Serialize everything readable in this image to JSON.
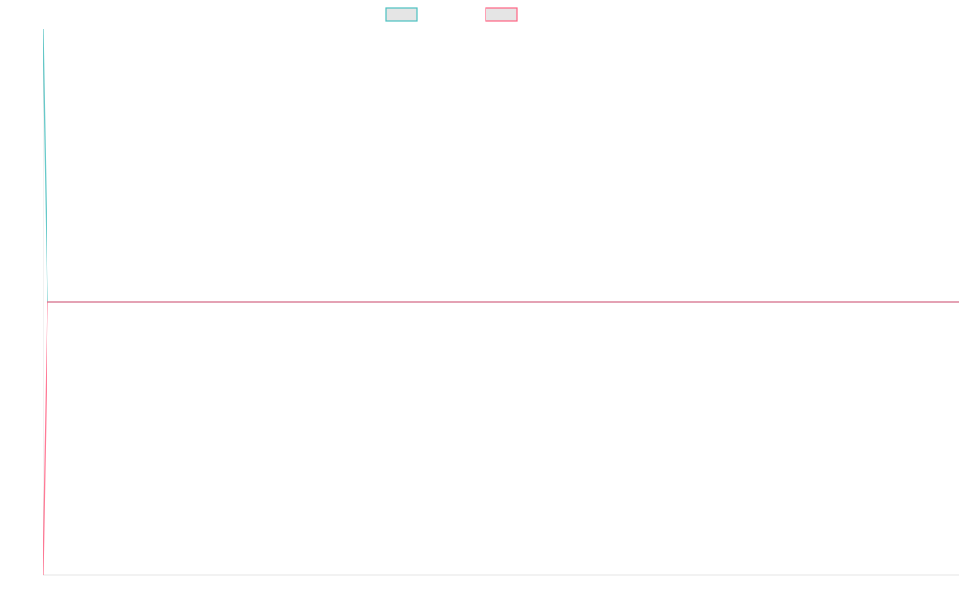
{
  "chart_data": {
    "type": "line",
    "title": "",
    "xlabel": "",
    "ylabel": "",
    "legend_position": "top",
    "grid": false,
    "xlim": [
      0,
      228
    ],
    "ylim": [
      -1,
      1
    ],
    "series": [
      {
        "color": "#4bc0c0",
        "points": [
          [
            0,
            1
          ],
          [
            1,
            0
          ],
          [
            228,
            0
          ]
        ]
      },
      {
        "color": "#ff6384",
        "points": [
          [
            0,
            -1
          ],
          [
            1,
            0
          ],
          [
            228,
            0
          ]
        ]
      }
    ]
  }
}
